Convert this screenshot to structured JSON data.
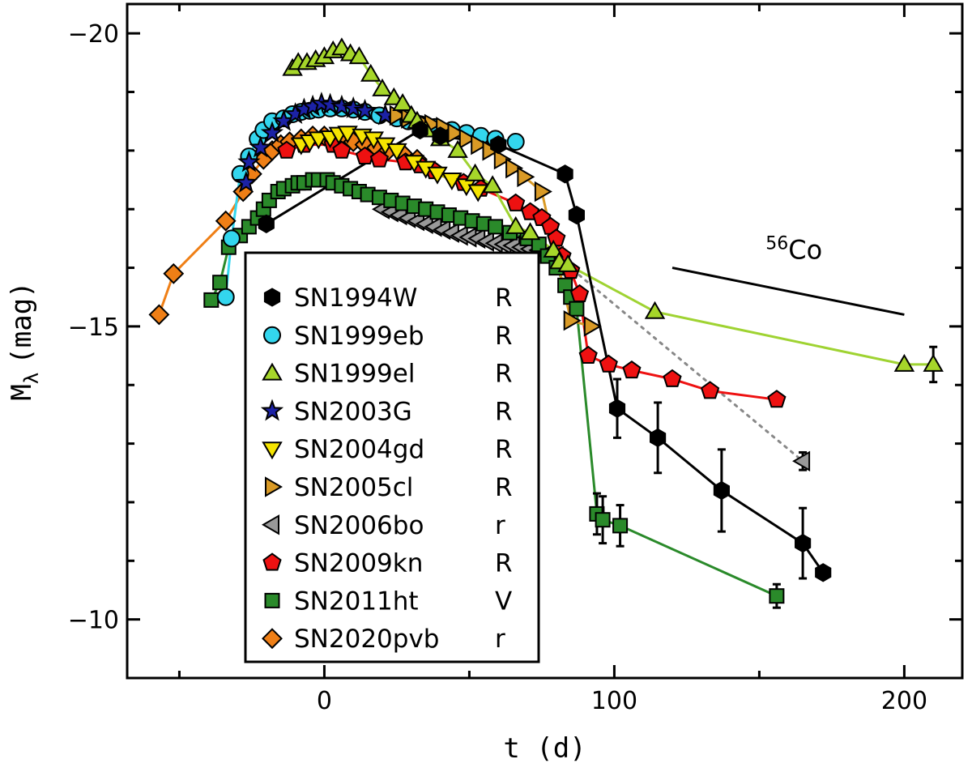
{
  "chart_data": {
    "type": "scatter",
    "title": "",
    "xlabel": "t (d)",
    "ylabel": "M",
    "ylabel_sub": "λ",
    "ylabel_unit": "(mag)",
    "xlim": [
      -68,
      220
    ],
    "ylim": [
      -9,
      -20.5
    ],
    "x_ticks": [
      0,
      100,
      200
    ],
    "x_tick_labels": [
      "0",
      "100",
      "200"
    ],
    "y_ticks": [
      -20,
      -15,
      -10
    ],
    "y_tick_labels": [
      "−20",
      "−15",
      "−10"
    ],
    "legend_position": "lower-left",
    "annotation": {
      "text_sup": "56",
      "text": "Co",
      "slope_line": [
        [
          120,
          -16.0
        ],
        [
          200,
          -15.2
        ]
      ],
      "label_at": [
        155,
        -16.15
      ]
    },
    "series": [
      {
        "name": "SN1994W",
        "band": "R",
        "marker": "hexagon",
        "fill": "#000000",
        "line": "#000000",
        "x": [
          -20,
          33,
          40,
          60,
          83,
          87,
          101,
          115,
          137,
          165,
          172
        ],
        "y": [
          -16.75,
          -18.35,
          -18.25,
          -18.1,
          -17.6,
          -16.9,
          -13.6,
          -13.1,
          -12.2,
          -11.3,
          -10.8
        ],
        "err": [
          0,
          0,
          0,
          0,
          0,
          0,
          0.5,
          0.6,
          0.7,
          0.6,
          0
        ]
      },
      {
        "name": "SN1999eb",
        "band": "R",
        "marker": "circle",
        "fill": "#33d6ee",
        "line": "#33d6ee",
        "x": [
          -34,
          -32,
          -29,
          -26,
          -23,
          -21,
          -18,
          -14,
          -11,
          -8,
          -5,
          -2,
          2,
          6,
          10,
          14,
          19,
          25,
          29,
          33,
          38,
          44,
          49,
          54,
          59,
          66
        ],
        "y": [
          -15.5,
          -16.5,
          -17.6,
          -17.9,
          -18.2,
          -18.35,
          -18.5,
          -18.55,
          -18.62,
          -18.66,
          -18.68,
          -18.7,
          -18.72,
          -18.72,
          -18.7,
          -18.66,
          -18.6,
          -18.55,
          -18.5,
          -18.45,
          -18.4,
          -18.35,
          -18.3,
          -18.25,
          -18.2,
          -18.15
        ]
      },
      {
        "name": "SN1999el",
        "band": "R",
        "marker": "triangle-up",
        "fill": "#a6d62a",
        "line": "#9fd332",
        "x": [
          -11,
          -9,
          -6,
          -3,
          0,
          3,
          6,
          9,
          12,
          16,
          20,
          24,
          27,
          30,
          32,
          35,
          40,
          46,
          52,
          58,
          66,
          71,
          79,
          81,
          84,
          114,
          200,
          210
        ],
        "y": [
          -19.4,
          -19.5,
          -19.5,
          -19.55,
          -19.6,
          -19.7,
          -19.75,
          -19.65,
          -19.6,
          -19.3,
          -19.05,
          -18.9,
          -18.8,
          -18.6,
          -18.5,
          -18.35,
          -18.2,
          -18.0,
          -17.6,
          -17.4,
          -16.7,
          -16.6,
          -16.3,
          -16.1,
          -16.05,
          -15.25,
          -14.35,
          -14.35
        ],
        "err": [
          0,
          0,
          0,
          0,
          0,
          0,
          0,
          0,
          0,
          0,
          0,
          0,
          0,
          0,
          0,
          0,
          0,
          0,
          0,
          0,
          0,
          0,
          0,
          0,
          0,
          0,
          0,
          0.3
        ]
      },
      {
        "name": "SN2003G",
        "band": "R",
        "marker": "star",
        "fill": "#1c22a6",
        "line": "#1c22a6",
        "x": [
          -27,
          -26,
          -22,
          -18,
          -14,
          -10,
          -7,
          -4,
          -1,
          2,
          6,
          10,
          14,
          21
        ],
        "y": [
          -17.45,
          -17.8,
          -18.05,
          -18.3,
          -18.5,
          -18.62,
          -18.7,
          -18.75,
          -18.8,
          -18.78,
          -18.75,
          -18.72,
          -18.68,
          -18.6
        ]
      },
      {
        "name": "SN2004gd",
        "band": "R",
        "marker": "triangle-down",
        "fill": "#f5e400",
        "line": "#c6b800",
        "x": [
          -8,
          -5,
          -2,
          2,
          5,
          8,
          13,
          17,
          21,
          25,
          31,
          35,
          39,
          44,
          49,
          53
        ],
        "y": [
          -18.1,
          -18.15,
          -18.2,
          -18.22,
          -18.28,
          -18.3,
          -18.25,
          -18.2,
          -18.1,
          -18.0,
          -17.8,
          -17.7,
          -17.6,
          -17.5,
          -17.4,
          -17.3
        ]
      },
      {
        "name": "SN2005cl",
        "band": "R",
        "marker": "triangle-right",
        "fill": "#d99a26",
        "line": "#d99a26",
        "x": [
          25,
          29,
          33,
          37,
          41,
          45,
          49,
          53,
          57,
          61,
          65,
          69,
          75,
          85,
          92
        ],
        "y": [
          -18.6,
          -18.55,
          -18.5,
          -18.45,
          -18.4,
          -18.3,
          -18.2,
          -18.1,
          -18.0,
          -17.85,
          -17.7,
          -17.55,
          -17.3,
          -15.1,
          -15.0
        ]
      },
      {
        "name": "SN2006bo",
        "band": "r",
        "marker": "triangle-left",
        "fill": "#999999",
        "line": "#888888",
        "dashed": true,
        "x": [
          20,
          23,
          26,
          29,
          32,
          35,
          38,
          41,
          44,
          47,
          50,
          53,
          56,
          59,
          62,
          65,
          68,
          71,
          74,
          77,
          80,
          165
        ],
        "y": [
          -17.0,
          -16.95,
          -16.9,
          -16.85,
          -16.8,
          -16.75,
          -16.7,
          -16.65,
          -16.6,
          -16.55,
          -16.52,
          -16.5,
          -16.45,
          -16.42,
          -16.4,
          -16.38,
          -16.35,
          -16.32,
          -16.3,
          -16.25,
          -16.2,
          -12.7
        ],
        "err": [
          0,
          0,
          0,
          0,
          0,
          0,
          0,
          0,
          0,
          0,
          0,
          0,
          0,
          0,
          0,
          0,
          0,
          0,
          0,
          0,
          0,
          0.15
        ]
      },
      {
        "name": "SN2009kn",
        "band": "R",
        "marker": "pentagon",
        "fill": "#ee1111",
        "line": "#ee1111",
        "x": [
          -13,
          -7,
          3,
          6,
          14,
          19,
          28,
          33,
          38,
          48,
          54,
          66,
          71,
          75,
          78,
          80,
          82,
          85,
          88,
          91,
          98,
          106,
          120,
          133,
          156
        ],
        "y": [
          -18.0,
          -18.1,
          -18.1,
          -18.0,
          -17.9,
          -17.85,
          -17.8,
          -17.75,
          -17.65,
          -17.45,
          -17.35,
          -17.1,
          -16.95,
          -16.85,
          -16.7,
          -16.5,
          -16.2,
          -15.95,
          -15.55,
          -14.5,
          -14.35,
          -14.25,
          -14.1,
          -13.9,
          -13.75
        ]
      },
      {
        "name": "SN2011ht",
        "band": "V",
        "marker": "square",
        "fill": "#2a8a2a",
        "line": "#2a8a2a",
        "x": [
          -39,
          -36,
          -33,
          -29,
          -26,
          -23,
          -21,
          -19,
          -16,
          -14,
          -11,
          -9,
          -7,
          -4,
          -2,
          1,
          3,
          6,
          9,
          12,
          15,
          19,
          23,
          27,
          31,
          35,
          39,
          43,
          47,
          51,
          55,
          59,
          64,
          70,
          74,
          77,
          80,
          83,
          85,
          87,
          94,
          96,
          102,
          156
        ],
        "y": [
          -15.45,
          -15.75,
          -16.35,
          -16.55,
          -16.7,
          -16.85,
          -17.0,
          -17.15,
          -17.3,
          -17.35,
          -17.4,
          -17.45,
          -17.45,
          -17.5,
          -17.5,
          -17.5,
          -17.45,
          -17.4,
          -17.35,
          -17.3,
          -17.25,
          -17.2,
          -17.15,
          -17.1,
          -17.05,
          -17.0,
          -16.95,
          -16.9,
          -16.85,
          -16.8,
          -16.75,
          -16.7,
          -16.6,
          -16.5,
          -16.4,
          -16.2,
          -16.0,
          -15.7,
          -15.5,
          -15.3,
          -11.8,
          -11.7,
          -11.6,
          -10.4
        ],
        "err": [
          0,
          0,
          0,
          0,
          0,
          0,
          0,
          0,
          0,
          0,
          0,
          0,
          0,
          0,
          0,
          0,
          0,
          0,
          0,
          0,
          0,
          0,
          0,
          0,
          0,
          0,
          0,
          0,
          0,
          0,
          0,
          0,
          0,
          0,
          0,
          0,
          0,
          0,
          0,
          0,
          0.35,
          0.4,
          0.35,
          0.2
        ]
      },
      {
        "name": "SN2020pvb",
        "band": "r",
        "marker": "diamond",
        "fill": "#ef7f16",
        "line": "#ef7f16",
        "x": [
          -57,
          -52,
          -34,
          -28,
          -25,
          -21,
          -18,
          -15,
          -12,
          -8,
          -4,
          0,
          3,
          6,
          10,
          14,
          18,
          22,
          27,
          32
        ],
        "y": [
          -15.2,
          -15.9,
          -16.8,
          -17.3,
          -17.6,
          -17.85,
          -18.0,
          -18.1,
          -18.15,
          -18.2,
          -18.25,
          -18.25,
          -18.2,
          -18.2,
          -18.15,
          -18.1,
          -18.05,
          -18.0,
          -17.95,
          -17.85
        ]
      }
    ]
  }
}
